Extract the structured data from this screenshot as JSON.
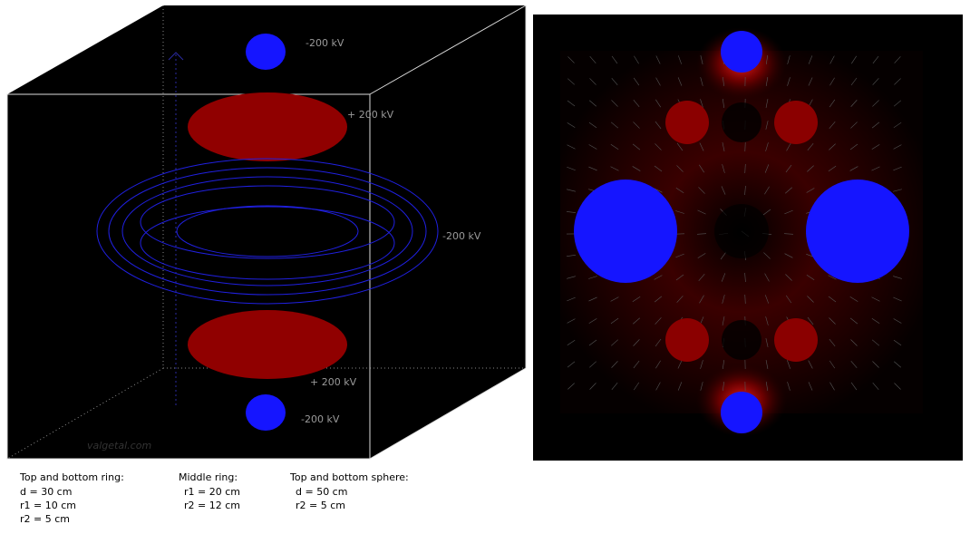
{
  "left_view": {
    "labels": [
      "-200 kV",
      "+ 200 kV",
      "-200 kV",
      "+ 200 kV",
      "-200 kV"
    ],
    "watermark": "valgetal.com"
  },
  "notes": [
    {
      "title": "Top and bottom ring:",
      "lines": [
        "d = 30 cm",
        "r1 = 10 cm",
        "r2 = 5 cm"
      ]
    },
    {
      "title": "Middle ring:",
      "lines": [
        "r1 = 20 cm",
        "r2 =  12 cm"
      ]
    },
    {
      "title": "Top and bottom sphere:",
      "lines": [
        "d = 50 cm",
        "r2 = 5 cm"
      ]
    }
  ]
}
